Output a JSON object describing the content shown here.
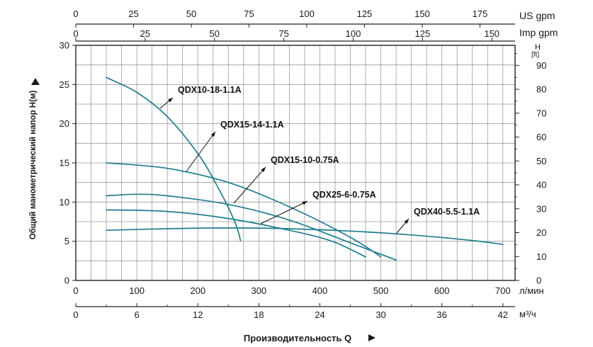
{
  "chart_data": {
    "type": "line",
    "title": "",
    "xlabel": "Производительность Q",
    "ylabel": "Общий манометрический напор H(м)",
    "x_unit_lpm": "л/мин",
    "x_unit_m3h": "м³/ч",
    "right_axis_label": "H",
    "right_axis_unit": "[ft]",
    "top_axis_us_label": "US gpm",
    "top_axis_imp_label": "Imp gpm",
    "xlim": [
      0,
      720
    ],
    "ylim": [
      0,
      30
    ],
    "ft_lim": [
      0,
      98.4
    ],
    "grid": true,
    "x_ticks_lpm": [
      "0",
      "100",
      "200",
      "300",
      "400",
      "500",
      "600",
      "700"
    ],
    "x_ticks_m3h": [
      "0",
      "6",
      "12",
      "18",
      "24",
      "30",
      "36",
      "42"
    ],
    "y_ticks": [
      "0",
      "5",
      "10",
      "15",
      "20",
      "25",
      "30"
    ],
    "ft_ticks": [
      "0",
      "10",
      "20",
      "30",
      "40",
      "50",
      "60",
      "70",
      "80",
      "90"
    ],
    "us_ticks": [
      "0",
      "25",
      "50",
      "75",
      "100",
      "125",
      "150",
      "175"
    ],
    "imp_ticks": [
      "0",
      "25",
      "50",
      "75",
      "100",
      "125",
      "150"
    ],
    "series_color": "#1f7d8e",
    "series": [
      {
        "name": "QDX10-18-1.1A",
        "x": [
          50,
          100,
          150,
          200,
          230,
          260,
          270
        ],
        "y": [
          25.9,
          24.0,
          20.9,
          16.2,
          12.3,
          7.6,
          5.1
        ]
      },
      {
        "name": "QDX15-14-1.1A",
        "x": [
          50,
          150,
          250,
          350,
          450,
          500
        ],
        "y": [
          15.0,
          14.3,
          12.5,
          9.4,
          5.5,
          3.0
        ]
      },
      {
        "name": "QDX15-10-0.75A",
        "x": [
          50,
          100,
          150,
          250,
          350,
          450,
          525
        ],
        "y": [
          10.8,
          11.0,
          10.8,
          9.7,
          7.7,
          4.8,
          2.6
        ]
      },
      {
        "name": "QDX25-6-0.75A",
        "x": [
          50,
          150,
          250,
          350,
          420,
          475
        ],
        "y": [
          9.0,
          8.8,
          7.9,
          6.4,
          5.0,
          3.0
        ]
      },
      {
        "name": "QDX40-5.5-1.1A",
        "x": [
          50,
          150,
          250,
          350,
          450,
          550,
          650,
          700
        ],
        "y": [
          6.4,
          6.6,
          6.7,
          6.6,
          6.3,
          5.8,
          5.1,
          4.6
        ]
      }
    ]
  }
}
